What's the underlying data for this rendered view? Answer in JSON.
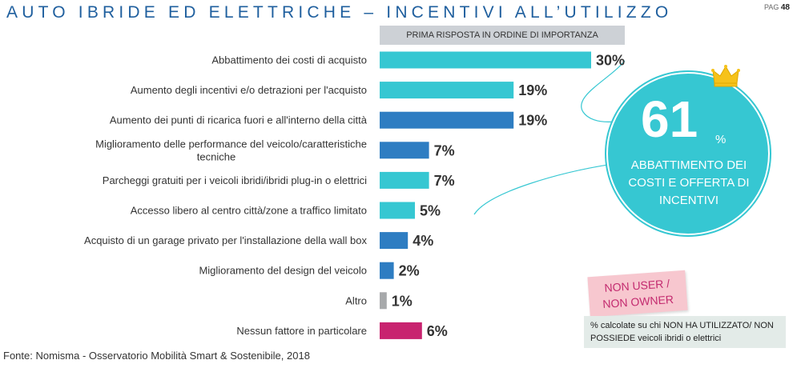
{
  "header": {
    "title": "AUTO IBRIDE ED ELETTRICHE – INCENTIVI ALL’UTILIZZO",
    "page_label": "PAG",
    "page_number": "48"
  },
  "chart_data": {
    "type": "bar",
    "orientation": "horizontal",
    "title": "PRIMA RISPOSTA IN ORDINE DI IMPORTANZA",
    "categories": [
      "Abbattimento dei costi di acquisto",
      "Aumento degli incentivi e/o detrazioni per l'acquisto",
      "Aumento dei punti di ricarica fuori e all'interno della città",
      "Miglioramento delle performance del veicolo/caratteristiche tecniche",
      "Parcheggi gratuiti per i veicoli ibridi/ibridi plug-in o elettrici",
      "Accesso libero al centro città/zone a traffico limitato",
      "Acquisto di un garage privato per l'installazione della wall box",
      "Miglioramento del design del veicolo",
      "Altro",
      "Nessun fattore in particolare"
    ],
    "values": [
      30,
      19,
      19,
      7,
      7,
      5,
      4,
      2,
      1,
      6
    ],
    "value_labels": [
      "30%",
      "19%",
      "19%",
      "7%",
      "7%",
      "5%",
      "4%",
      "2%",
      "1%",
      "6%"
    ],
    "colors": [
      "#36c7d2",
      "#36c7d2",
      "#2e7dc2",
      "#2e7dc2",
      "#36c7d2",
      "#36c7d2",
      "#2e7dc2",
      "#2e7dc2",
      "#a7a9ab",
      "#c8236f"
    ],
    "xlim": [
      0,
      30
    ],
    "grid": false,
    "legend": "none"
  },
  "highlight": {
    "value": "61",
    "unit": "%",
    "caption": "ABBATTIMENTO DEI COSTI E OFFERTA DI INCENTIVI",
    "crown": "crown-icon"
  },
  "sample_tag": {
    "line1": "NON USER /",
    "line2": "NON OWNER"
  },
  "note": "% calcolate su chi NON HA UTILIZZATO/ NON POSSIEDE veicoli ibridi o elettrici",
  "source": "Fonte: Nomisma - Osservatorio Mobilità Smart & Sostenibile, 2018"
}
